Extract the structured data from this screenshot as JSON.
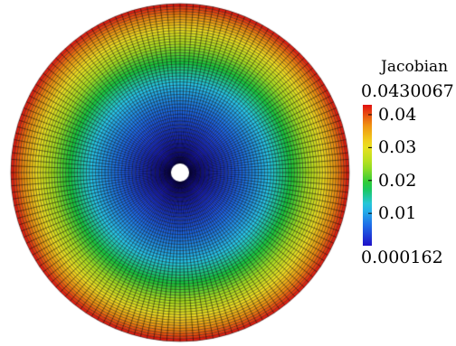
{
  "legend": {
    "title": "Jacobian",
    "max_label": "0.0430067",
    "min_label": "0.000162",
    "min_value": 0.000162,
    "max_value": 0.0430067,
    "ticks": [
      {
        "value": 0.04,
        "label": "0.04"
      },
      {
        "value": 0.03,
        "label": "0.03"
      },
      {
        "value": 0.02,
        "label": "0.02"
      },
      {
        "value": 0.01,
        "label": "0.01"
      }
    ],
    "colormap": [
      "#1f10c8",
      "#1f6be8",
      "#27c7e8",
      "#18c83c",
      "#a8e020",
      "#f0e020",
      "#f09010",
      "#e01010"
    ]
  },
  "mesh": {
    "shape": "annular disk",
    "radial_cells": 50,
    "angular_cells": 160,
    "edge_color": "#000000",
    "hole_color": "#ffffff"
  }
}
